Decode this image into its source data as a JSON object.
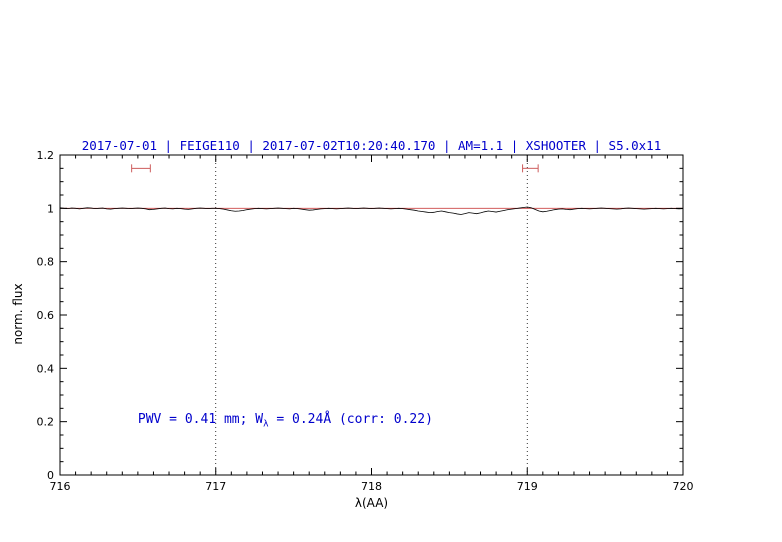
{
  "page": {
    "background": "#ffffff"
  },
  "chart_data": {
    "type": "line",
    "title": "2017-07-01 | FEIGE110 | 2017-07-02T10:20:40.170 | AM=1.1 | XSHOOTER | S5.0x11",
    "title_color": "#0000cc",
    "xlabel": "λ(AA)",
    "ylabel": "norm. flux",
    "xlim": [
      716,
      720
    ],
    "ylim": [
      0,
      1.2
    ],
    "grid": false,
    "xticks": {
      "values": [
        716,
        717,
        718,
        719,
        720
      ],
      "labels": [
        "716",
        "717",
        "718",
        "719",
        "720"
      ],
      "minor_step": 0.1
    },
    "yticks": {
      "values": [
        0,
        0.2,
        0.4,
        0.6,
        0.8,
        1,
        1.2
      ],
      "labels": [
        "0",
        "0.2",
        "0.4",
        "0.6",
        "0.8",
        "1",
        "1.2"
      ],
      "minor_step": 0.05
    },
    "vlines": {
      "x": [
        717,
        719
      ],
      "style": "dotted",
      "color": "#000000"
    },
    "continuum": {
      "y": 1.0,
      "color": "#cc4444"
    },
    "marker_color": "#cd5c5c",
    "markers": [
      {
        "x_center": 716.52,
        "half_width": 0.06,
        "y": 1.15
      },
      {
        "x_center": 719.02,
        "half_width": 0.05,
        "y": 1.15
      }
    ],
    "series": [
      {
        "name": "normalized spectrum",
        "color": "#000000",
        "x_start": 716,
        "x_step": 0.025,
        "values": [
          1.002,
          1.0,
          0.999,
          1.001,
          1.0,
          0.998,
          1.0,
          1.002,
          1.001,
          0.999,
          1.0,
          1.001,
          0.998,
          0.997,
          0.999,
          1.0,
          1.001,
          1.0,
          0.999,
          1.0,
          1.001,
          1.0,
          0.998,
          0.995,
          0.996,
          0.998,
          1.0,
          1.001,
          0.999,
          0.998,
          1.0,
          0.999,
          0.997,
          0.996,
          0.998,
          1.0,
          1.001,
          1.0,
          0.999,
          1.0,
          1.0,
          0.999,
          0.997,
          0.994,
          0.991,
          0.989,
          0.99,
          0.992,
          0.995,
          0.997,
          0.999,
          1.0,
          0.999,
          0.998,
          0.999,
          1.0,
          1.001,
          1.0,
          0.999,
          0.998,
          1.0,
          0.999,
          0.997,
          0.995,
          0.993,
          0.994,
          0.996,
          0.998,
          0.999,
          1.0,
          0.999,
          0.998,
          0.999,
          1.0,
          1.001,
          1.0,
          0.999,
          1.0,
          1.001,
          1.0,
          0.999,
          1.0,
          1.001,
          1.0,
          0.999,
          0.998,
          0.999,
          1.0,
          0.999,
          0.997,
          0.995,
          0.993,
          0.99,
          0.988,
          0.986,
          0.984,
          0.985,
          0.988,
          0.99,
          0.987,
          0.984,
          0.982,
          0.979,
          0.977,
          0.98,
          0.984,
          0.982,
          0.98,
          0.983,
          0.987,
          0.99,
          0.988,
          0.986,
          0.989,
          0.992,
          0.995,
          0.997,
          0.999,
          1.001,
          1.003,
          1.005,
          1.002,
          0.996,
          0.99,
          0.987,
          0.989,
          0.992,
          0.995,
          0.997,
          0.998,
          0.996,
          0.995,
          0.997,
          0.999,
          1.0,
          0.999,
          0.998,
          0.999,
          1.0,
          1.001,
          1.0,
          0.999,
          0.998,
          0.997,
          0.998,
          1.0,
          1.001,
          1.0,
          0.999,
          0.998,
          0.997,
          0.998,
          0.999,
          1.0,
          0.999,
          0.998,
          0.999,
          1.0,
          0.999,
          0.998,
          0.999
        ]
      }
    ],
    "annotation": {
      "text_before": "PWV = 0.41 mm; W",
      "subscript": "λ",
      "text_after": " = 0.24Å (corr: 0.22)",
      "color": "#0000cc",
      "x": 716.5,
      "y": 0.2
    }
  }
}
